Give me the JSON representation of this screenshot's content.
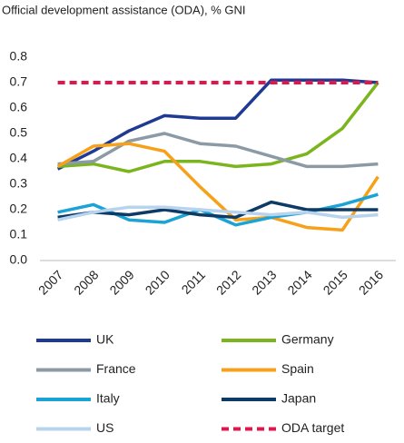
{
  "chart_data": {
    "type": "line",
    "title": "Official development assistance (ODA), % GNI",
    "categories": [
      "2007",
      "2008",
      "2009",
      "2010",
      "2011",
      "2012",
      "2013",
      "2014",
      "2015",
      "2016"
    ],
    "series": [
      {
        "name": "UK",
        "color": "#1f3a93",
        "values": [
          0.36,
          0.43,
          0.51,
          0.57,
          0.56,
          0.56,
          0.71,
          0.71,
          0.71,
          0.7
        ]
      },
      {
        "name": "Germany",
        "color": "#7ab51d",
        "values": [
          0.37,
          0.38,
          0.35,
          0.39,
          0.39,
          0.37,
          0.38,
          0.42,
          0.52,
          0.7
        ]
      },
      {
        "name": "France",
        "color": "#8c9aa6",
        "values": [
          0.38,
          0.39,
          0.47,
          0.5,
          0.46,
          0.45,
          0.41,
          0.37,
          0.37,
          0.38
        ]
      },
      {
        "name": "Spain",
        "color": "#f7a11a",
        "values": [
          0.37,
          0.45,
          0.46,
          0.43,
          0.29,
          0.16,
          0.17,
          0.13,
          0.12,
          0.33
        ]
      },
      {
        "name": "Italy",
        "color": "#1aa3d4",
        "values": [
          0.19,
          0.22,
          0.16,
          0.15,
          0.2,
          0.14,
          0.17,
          0.19,
          0.22,
          0.26
        ]
      },
      {
        "name": "Japan",
        "color": "#0d3b66",
        "values": [
          0.17,
          0.19,
          0.18,
          0.2,
          0.18,
          0.17,
          0.23,
          0.2,
          0.2,
          0.2
        ]
      },
      {
        "name": "US",
        "color": "#b8d3ee",
        "values": [
          0.16,
          0.19,
          0.21,
          0.21,
          0.2,
          0.19,
          0.18,
          0.19,
          0.17,
          0.18
        ]
      },
      {
        "name": "ODA  target",
        "color": "#e0174d",
        "line_style": "dashed",
        "values": [
          0.7,
          0.7,
          0.7,
          0.7,
          0.7,
          0.7,
          0.7,
          0.7,
          0.7,
          0.7
        ]
      }
    ],
    "ylim": [
      0,
      0.8
    ],
    "yticks": [
      {
        "value": 0,
        "label": "0.0"
      },
      0.1,
      0.2,
      0.3,
      0.4,
      0.5,
      0.6,
      0.7,
      0.8
    ],
    "grid": false,
    "legend": "bottom"
  }
}
